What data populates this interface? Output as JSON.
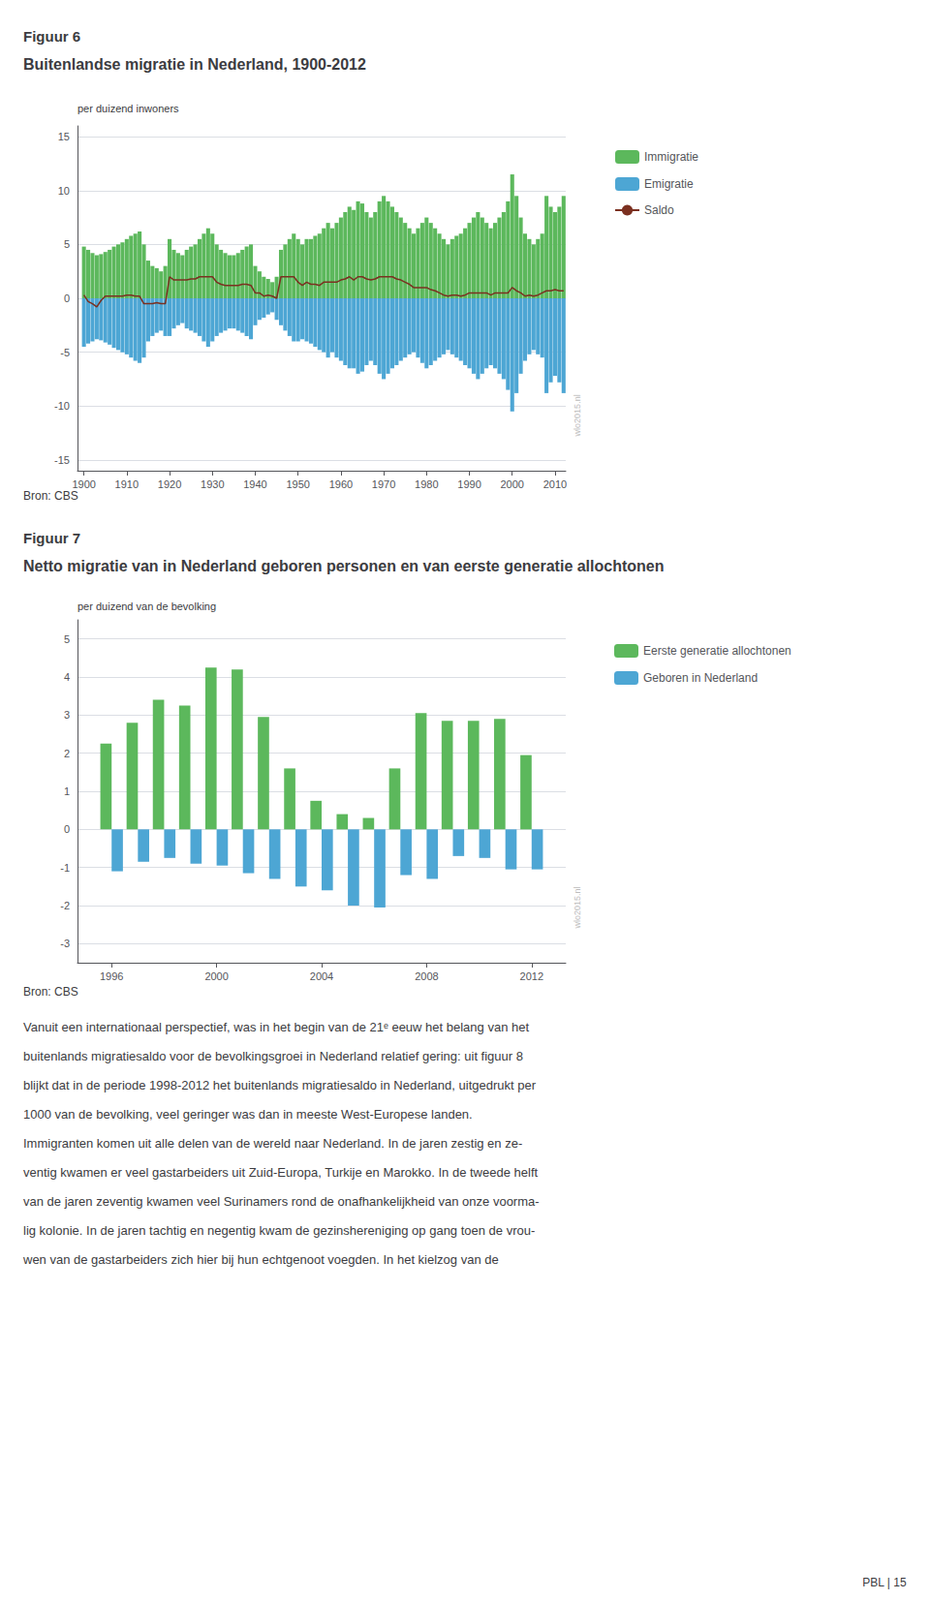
{
  "chart_data": [
    {
      "type": "bar",
      "label": "Figuur 6",
      "title": "Buitenlandse migratie in Nederland, 1900-2012",
      "ylabel": "per duizend inwoners",
      "source": "Bron: CBS",
      "watermark": "wlo2015.nl",
      "stacked": true,
      "grid": true,
      "legend": "right",
      "x": [
        1900,
        1901,
        1902,
        1903,
        1904,
        1905,
        1906,
        1907,
        1908,
        1909,
        1910,
        1911,
        1912,
        1913,
        1914,
        1915,
        1916,
        1917,
        1918,
        1919,
        1920,
        1921,
        1922,
        1923,
        1924,
        1925,
        1926,
        1927,
        1928,
        1929,
        1930,
        1931,
        1932,
        1933,
        1934,
        1935,
        1936,
        1937,
        1938,
        1939,
        1940,
        1941,
        1942,
        1943,
        1944,
        1945,
        1946,
        1947,
        1948,
        1949,
        1950,
        1951,
        1952,
        1953,
        1954,
        1955,
        1956,
        1957,
        1958,
        1959,
        1960,
        1961,
        1962,
        1963,
        1964,
        1965,
        1966,
        1967,
        1968,
        1969,
        1970,
        1971,
        1972,
        1973,
        1974,
        1975,
        1976,
        1977,
        1978,
        1979,
        1980,
        1981,
        1982,
        1983,
        1984,
        1985,
        1986,
        1987,
        1988,
        1989,
        1990,
        1991,
        1992,
        1993,
        1994,
        1995,
        1996,
        1997,
        1998,
        1999,
        2000,
        2001,
        2002,
        2003,
        2004,
        2005,
        2006,
        2007,
        2008,
        2009,
        2010,
        2011,
        2012
      ],
      "series": [
        {
          "name": "Immigratie",
          "type": "bar",
          "color": "#5cb85c",
          "values": [
            4.8,
            4.5,
            4.2,
            4.0,
            4.1,
            4.3,
            4.5,
            4.8,
            5.0,
            5.2,
            5.5,
            5.8,
            6.0,
            6.2,
            5.0,
            3.5,
            3.0,
            2.8,
            2.5,
            3.0,
            5.5,
            4.5,
            4.2,
            4.0,
            4.5,
            4.8,
            5.0,
            5.5,
            6.0,
            6.5,
            6.0,
            5.0,
            4.5,
            4.2,
            4.0,
            4.0,
            4.2,
            4.5,
            4.8,
            5.0,
            3.0,
            2.5,
            2.0,
            1.8,
            1.5,
            2.0,
            4.5,
            5.0,
            5.5,
            6.0,
            5.5,
            5.0,
            5.5,
            5.5,
            5.8,
            6.0,
            6.5,
            7.0,
            6.5,
            7.0,
            7.5,
            8.0,
            8.5,
            8.2,
            9.0,
            8.8,
            8.0,
            7.5,
            8.0,
            9.0,
            9.5,
            9.0,
            8.5,
            8.0,
            7.5,
            7.0,
            6.5,
            6.0,
            6.5,
            7.0,
            7.5,
            7.0,
            6.5,
            6.0,
            5.5,
            5.0,
            5.5,
            5.8,
            6.0,
            6.5,
            7.0,
            7.5,
            8.0,
            7.5,
            7.0,
            6.5,
            7.0,
            7.5,
            8.0,
            9.0,
            11.5,
            9.5,
            7.5,
            6.0,
            5.5,
            5.0,
            5.5,
            6.0,
            9.5,
            8.5,
            8.0,
            8.5,
            9.5
          ]
        },
        {
          "name": "Emigratie",
          "type": "bar",
          "color": "#4da6d4",
          "values": [
            -4.5,
            -4.2,
            -4.0,
            -3.8,
            -3.9,
            -4.1,
            -4.3,
            -4.6,
            -4.8,
            -5.0,
            -5.2,
            -5.5,
            -5.8,
            -6.0,
            -5.5,
            -4.0,
            -3.5,
            -3.2,
            -3.0,
            -3.5,
            -3.5,
            -2.8,
            -2.5,
            -2.3,
            -2.8,
            -3.0,
            -3.2,
            -3.5,
            -4.0,
            -4.5,
            -4.0,
            -3.5,
            -3.2,
            -3.0,
            -2.8,
            -2.8,
            -3.0,
            -3.2,
            -3.5,
            -3.8,
            -2.5,
            -2.0,
            -1.8,
            -1.5,
            -1.3,
            -2.0,
            -2.5,
            -3.0,
            -3.5,
            -4.0,
            -4.0,
            -3.8,
            -4.0,
            -4.2,
            -4.5,
            -4.8,
            -5.0,
            -5.5,
            -5.0,
            -5.5,
            -5.8,
            -6.2,
            -6.5,
            -6.5,
            -7.0,
            -6.8,
            -6.2,
            -5.8,
            -6.2,
            -7.0,
            -7.5,
            -7.0,
            -6.5,
            -6.2,
            -5.8,
            -5.5,
            -5.2,
            -5.0,
            -5.5,
            -6.0,
            -6.5,
            -6.2,
            -5.8,
            -5.5,
            -5.2,
            -4.8,
            -5.2,
            -5.5,
            -5.8,
            -6.2,
            -6.5,
            -7.0,
            -7.5,
            -7.0,
            -6.5,
            -6.2,
            -6.5,
            -7.0,
            -7.5,
            -8.5,
            -10.5,
            -8.8,
            -7.0,
            -5.8,
            -5.2,
            -4.8,
            -5.2,
            -5.5,
            -8.8,
            -7.8,
            -7.2,
            -7.8,
            -8.8
          ]
        },
        {
          "name": "Saldo",
          "type": "line",
          "color": "#7B3020",
          "values": [
            0.3,
            -0.3,
            -0.5,
            -0.8,
            -0.2,
            0.2,
            0.2,
            0.2,
            0.2,
            0.2,
            0.3,
            0.3,
            0.2,
            0.2,
            -0.5,
            -0.5,
            -0.5,
            -0.4,
            -0.5,
            -0.5,
            2.0,
            1.7,
            1.7,
            1.7,
            1.7,
            1.8,
            1.8,
            2.0,
            2.0,
            2.0,
            2.0,
            1.5,
            1.3,
            1.2,
            1.2,
            1.2,
            1.2,
            1.3,
            1.3,
            1.2,
            0.5,
            0.5,
            0.2,
            0.3,
            0.2,
            0.0,
            2.0,
            2.0,
            2.0,
            2.0,
            1.5,
            1.2,
            1.5,
            1.3,
            1.3,
            1.2,
            1.5,
            1.5,
            1.5,
            1.5,
            1.7,
            1.8,
            2.0,
            1.7,
            2.0,
            2.0,
            1.8,
            1.7,
            1.8,
            2.0,
            2.0,
            2.0,
            2.0,
            1.8,
            1.7,
            1.5,
            1.3,
            1.0,
            1.0,
            1.0,
            1.0,
            0.8,
            0.7,
            0.5,
            0.3,
            0.2,
            0.3,
            0.3,
            0.2,
            0.3,
            0.5,
            0.5,
            0.5,
            0.5,
            0.5,
            0.3,
            0.5,
            0.5,
            0.5,
            0.5,
            1.0,
            0.7,
            0.5,
            0.2,
            0.3,
            0.2,
            0.3,
            0.5,
            0.7,
            0.7,
            0.8,
            0.7,
            0.7
          ]
        }
      ],
      "xlim": [
        1898.5,
        2012.5
      ],
      "xticks": [
        1900,
        1910,
        1920,
        1930,
        1940,
        1950,
        1960,
        1970,
        1980,
        1990,
        2000,
        2010
      ],
      "ylim": [
        -16,
        16
      ],
      "yticks": [
        -15,
        -10,
        -5,
        0,
        5,
        10,
        15
      ]
    },
    {
      "type": "bar",
      "label": "Figuur 7",
      "title": "Netto migratie van in Nederland geboren personen en van eerste generatie allochtonen",
      "ylabel": "per duizend van de bevolking",
      "source": "Bron: CBS",
      "watermark": "wlo2015.nl",
      "grid": true,
      "legend": "right",
      "x": [
        1996,
        1997,
        1998,
        1999,
        2000,
        2001,
        2002,
        2003,
        2004,
        2005,
        2006,
        2007,
        2008,
        2009,
        2010,
        2011,
        2012
      ],
      "series": [
        {
          "name": "Eerste generatie allochtonen",
          "type": "bar",
          "color": "#5cb85c",
          "values": [
            2.25,
            2.8,
            3.4,
            3.25,
            4.25,
            4.2,
            2.95,
            1.6,
            0.75,
            0.4,
            0.3,
            1.6,
            3.05,
            2.85,
            2.85,
            2.9,
            1.95
          ]
        },
        {
          "name": "Geboren in Nederland",
          "type": "bar",
          "color": "#4da6d4",
          "values": [
            -1.1,
            -0.85,
            -0.75,
            -0.9,
            -0.95,
            -1.15,
            -1.3,
            -1.5,
            -1.6,
            -2.0,
            -2.05,
            -1.2,
            -1.3,
            -0.7,
            -0.75,
            -1.05,
            -1.05
          ]
        }
      ],
      "xlim": [
        1994.7,
        2013.3
      ],
      "xticks": [
        1996,
        2000,
        2004,
        2008,
        2012
      ],
      "ylim": [
        -3.5,
        5.5
      ],
      "yticks": [
        -3,
        -2,
        -1,
        0,
        1,
        2,
        3,
        4,
        5
      ]
    }
  ],
  "body_text": [
    "Vanuit een internationaal perspectief, was in het begin van de 21ᵉ eeuw het belang van het",
    "buitenlands migratiesaldo voor de bevolkingsgroei in Nederland relatief gering: uit figuur 8",
    "blijkt dat in de periode 1998-2012 het buitenlands migratiesaldo in Nederland, uitgedrukt per",
    "1000 van de bevolking, veel geringer was dan in meeste West-Europese landen.",
    "Immigranten komen uit alle delen van de wereld naar Nederland. In de jaren zestig en ze-",
    "ventig kwamen er veel gastarbeiders uit Zuid-Europa, Turkije en Marokko. In de tweede helft",
    "van de jaren zeventig kwamen veel Surinamers rond de onafhankelijkheid van onze voorma-",
    "lig kolonie. In de jaren tachtig en negentig kwam de gezinshereniging op gang toen de vrou-",
    "wen van de gastarbeiders zich hier bij hun echtgenoot voegden. In het kielzog van de"
  ],
  "footer": "PBL | 15"
}
